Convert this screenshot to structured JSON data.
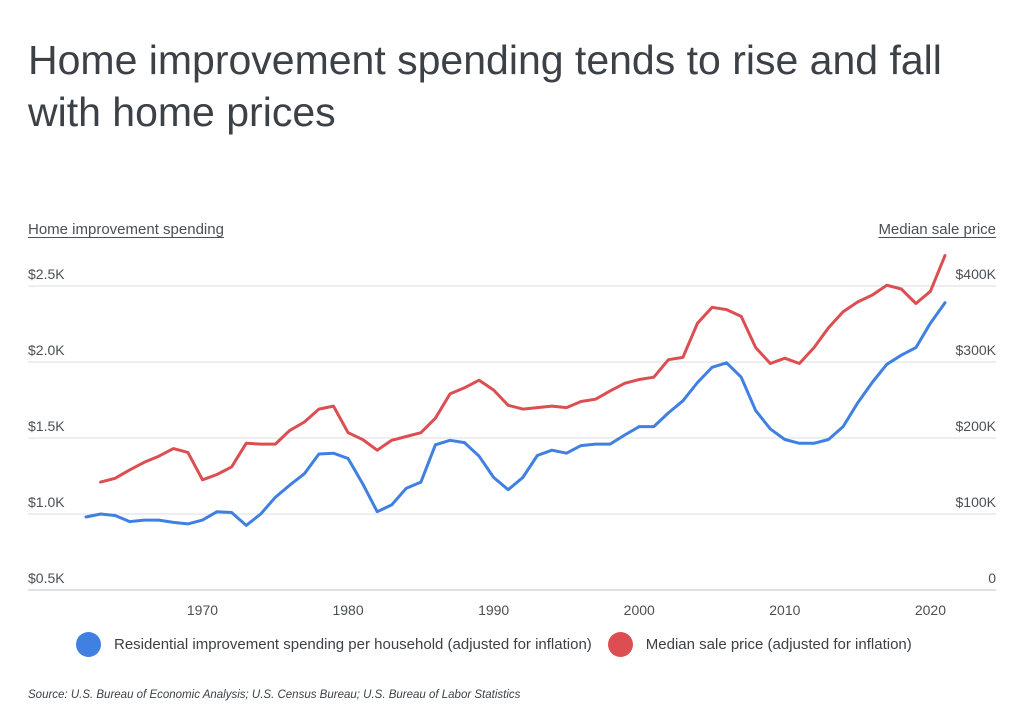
{
  "title": "Home improvement spending tends to rise and fall with home prices",
  "chart_data": {
    "type": "line",
    "y_left": {
      "label": "Home improvement spending",
      "ticks": [
        {
          "value": 500,
          "label": "$0.5K"
        },
        {
          "value": 1000,
          "label": "$1.0K"
        },
        {
          "value": 1500,
          "label": "$1.5K"
        },
        {
          "value": 2000,
          "label": "$2.0K"
        },
        {
          "value": 2500,
          "label": "$2.5K"
        }
      ],
      "range": [
        500,
        2500
      ]
    },
    "y_right": {
      "label": "Median sale price",
      "ticks": [
        {
          "value": 0,
          "label": "0"
        },
        {
          "value": 100000,
          "label": "$100K"
        },
        {
          "value": 200000,
          "label": "$200K"
        },
        {
          "value": 300000,
          "label": "$300K"
        },
        {
          "value": 400000,
          "label": "$400K"
        }
      ],
      "range": [
        0,
        400000
      ]
    },
    "x_ticks": [
      1970,
      1980,
      1990,
      2000,
      2010,
      2020
    ],
    "x_range": [
      1961,
      2022
    ],
    "series": [
      {
        "name": "Residential improvement spending per household (adjusted for inflation)",
        "axis": "left",
        "color": "#3f80e0",
        "x": [
          1962,
          1963,
          1964,
          1965,
          1966,
          1967,
          1968,
          1969,
          1970,
          1971,
          1972,
          1973,
          1974,
          1975,
          1976,
          1977,
          1978,
          1979,
          1980,
          1981,
          1982,
          1983,
          1984,
          1985,
          1986,
          1987,
          1988,
          1989,
          1990,
          1991,
          1992,
          1993,
          1994,
          1995,
          1996,
          1997,
          1998,
          1999,
          2000,
          2001,
          2002,
          2003,
          2004,
          2005,
          2006,
          2007,
          2008,
          2009,
          2010,
          2011,
          2012,
          2013,
          2014,
          2015,
          2016,
          2017,
          2018,
          2019,
          2020,
          2021
        ],
        "values": [
          980,
          1000,
          990,
          950,
          960,
          960,
          945,
          935,
          960,
          1015,
          1010,
          925,
          1000,
          1110,
          1190,
          1265,
          1395,
          1400,
          1365,
          1200,
          1015,
          1060,
          1170,
          1210,
          1455,
          1485,
          1470,
          1380,
          1240,
          1160,
          1240,
          1385,
          1420,
          1400,
          1450,
          1460,
          1460,
          1520,
          1575,
          1575,
          1665,
          1745,
          1865,
          1965,
          1995,
          1900,
          1680,
          1560,
          1490,
          1465,
          1465,
          1490,
          1575,
          1730,
          1865,
          1985,
          2045,
          2095,
          2255,
          2390
        ]
      },
      {
        "name": "Median sale price (adjusted for inflation)",
        "axis": "right",
        "color": "#dc4e51",
        "x": [
          1963,
          1964,
          1965,
          1966,
          1967,
          1968,
          1969,
          1970,
          1971,
          1972,
          1973,
          1974,
          1975,
          1976,
          1977,
          1978,
          1979,
          1980,
          1981,
          1982,
          1983,
          1984,
          1985,
          1986,
          1987,
          1988,
          1989,
          1990,
          1991,
          1992,
          1993,
          1994,
          1995,
          1996,
          1997,
          1998,
          1999,
          2000,
          2001,
          2002,
          2003,
          2004,
          2005,
          2006,
          2007,
          2008,
          2009,
          2010,
          2011,
          2012,
          2013,
          2014,
          2015,
          2016,
          2017,
          2018,
          2019,
          2020,
          2021
        ],
        "values": [
          142000,
          147000,
          158000,
          168000,
          176000,
          186000,
          181000,
          145000,
          152000,
          162000,
          193000,
          192000,
          192000,
          210000,
          221000,
          238000,
          242000,
          207000,
          198000,
          184000,
          197000,
          202000,
          207000,
          226000,
          258000,
          266000,
          276000,
          263000,
          243000,
          238000,
          240000,
          242000,
          240000,
          248000,
          251000,
          262000,
          272000,
          277000,
          280000,
          303000,
          306000,
          351000,
          372000,
          369000,
          360000,
          319000,
          298000,
          305000,
          298000,
          319000,
          345000,
          366000,
          379000,
          388000,
          401000,
          396000,
          377000,
          393000,
          440000
        ]
      }
    ]
  },
  "legend": {
    "spending": "Residential improvement spending per household (adjusted for inflation)",
    "price": "Median sale price (adjusted for inflation)"
  },
  "source": "Source:  U.S. Bureau of Economic Analysis; U.S. Census Bureau; U.S. Bureau of Labor Statistics"
}
